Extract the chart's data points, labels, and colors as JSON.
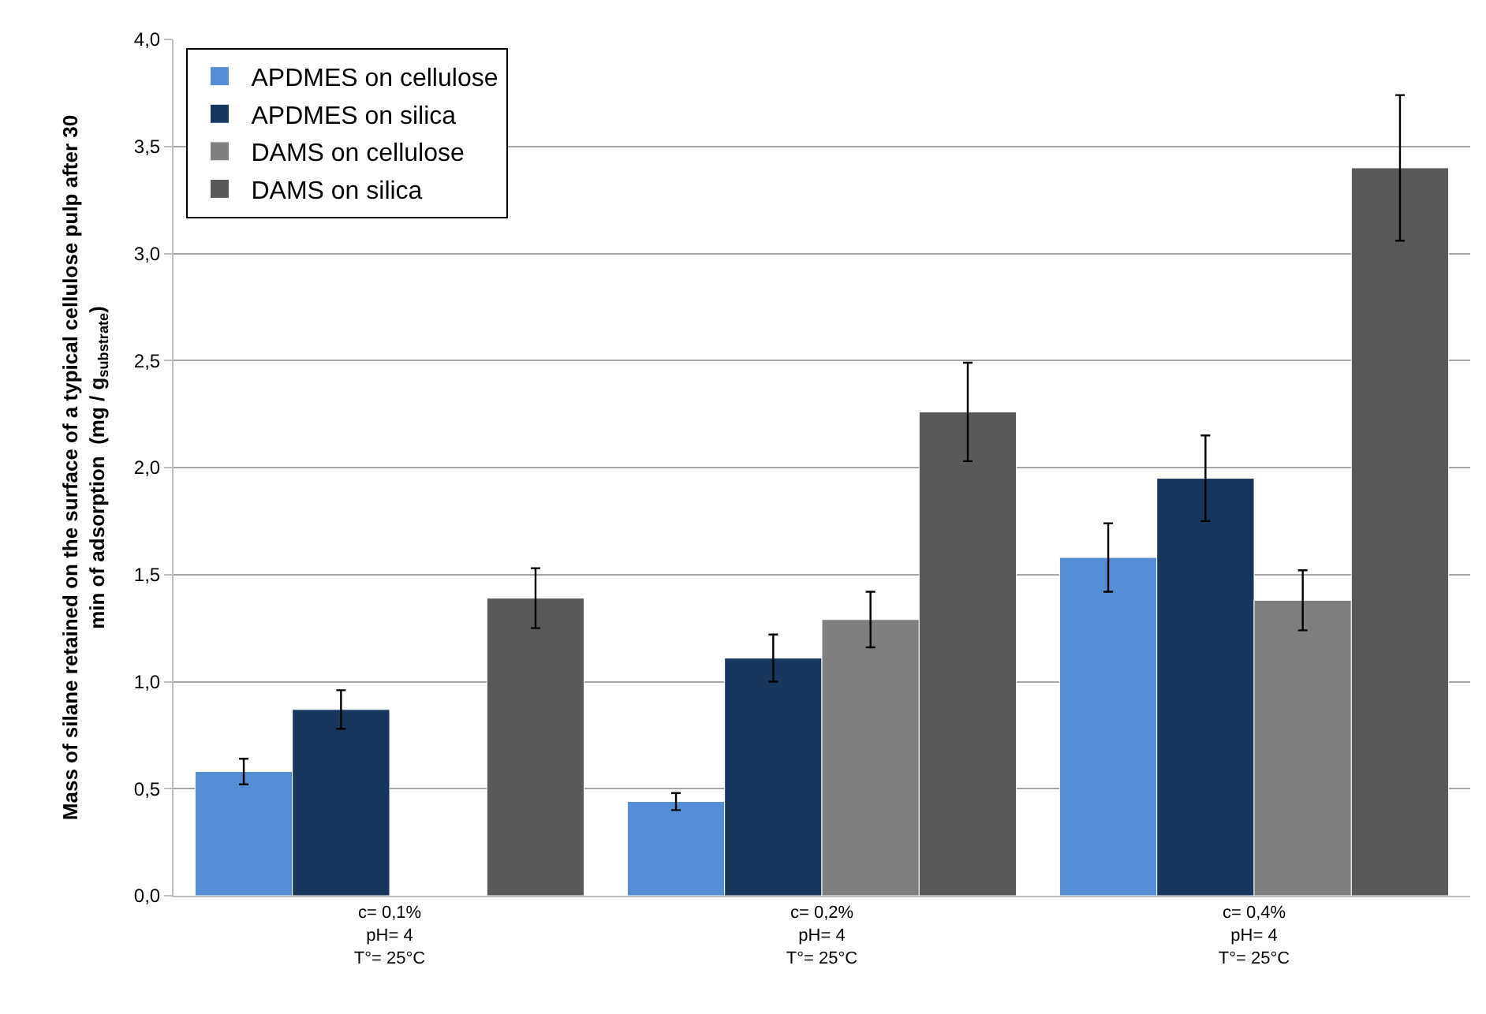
{
  "chart_data": {
    "type": "bar",
    "ylabel": "Mass of silane retained on the surface of a typical cellulose pulp after 30 min of adsorption  (mg / g$_{substrate}$)",
    "categories": [
      "c= 0,1%\npH= 4\nT°= 25°C",
      "c= 0,2%\npH= 4\nT°= 25°C",
      "c= 0,4%\npH= 4\nT°= 25°C"
    ],
    "series": [
      {
        "name": "APDMES on cellulose",
        "color": "#558ed5",
        "values": [
          0.58,
          0.44,
          1.58
        ],
        "errors": [
          0.06,
          0.04,
          0.16
        ]
      },
      {
        "name": "APDMES on silica",
        "color": "#17375e",
        "values": [
          0.87,
          1.11,
          1.95
        ],
        "errors": [
          0.09,
          0.11,
          0.2
        ]
      },
      {
        "name": "DAMS on cellulose",
        "color": "#7f7f7f",
        "values": [
          null,
          1.29,
          1.38
        ],
        "errors": [
          null,
          0.13,
          0.14
        ]
      },
      {
        "name": "DAMS on silica",
        "color": "#595959",
        "values": [
          1.39,
          2.26,
          3.4
        ],
        "errors": [
          0.14,
          0.23,
          0.34
        ]
      }
    ],
    "ylim": [
      0,
      4
    ],
    "yticks": [
      {
        "value": 0,
        "label": "0,0"
      },
      {
        "value": 0.5,
        "label": "0,5"
      },
      {
        "value": 1,
        "label": "1,0"
      },
      {
        "value": 1.5,
        "label": "1,5"
      },
      {
        "value": 2,
        "label": "2,0"
      },
      {
        "value": 2.5,
        "label": "2,5"
      },
      {
        "value": 3,
        "label": "3,0"
      },
      {
        "value": 3.5,
        "label": "3,5"
      },
      {
        "value": 4,
        "label": "4,0"
      }
    ],
    "grid": "y",
    "legend": "top left"
  }
}
